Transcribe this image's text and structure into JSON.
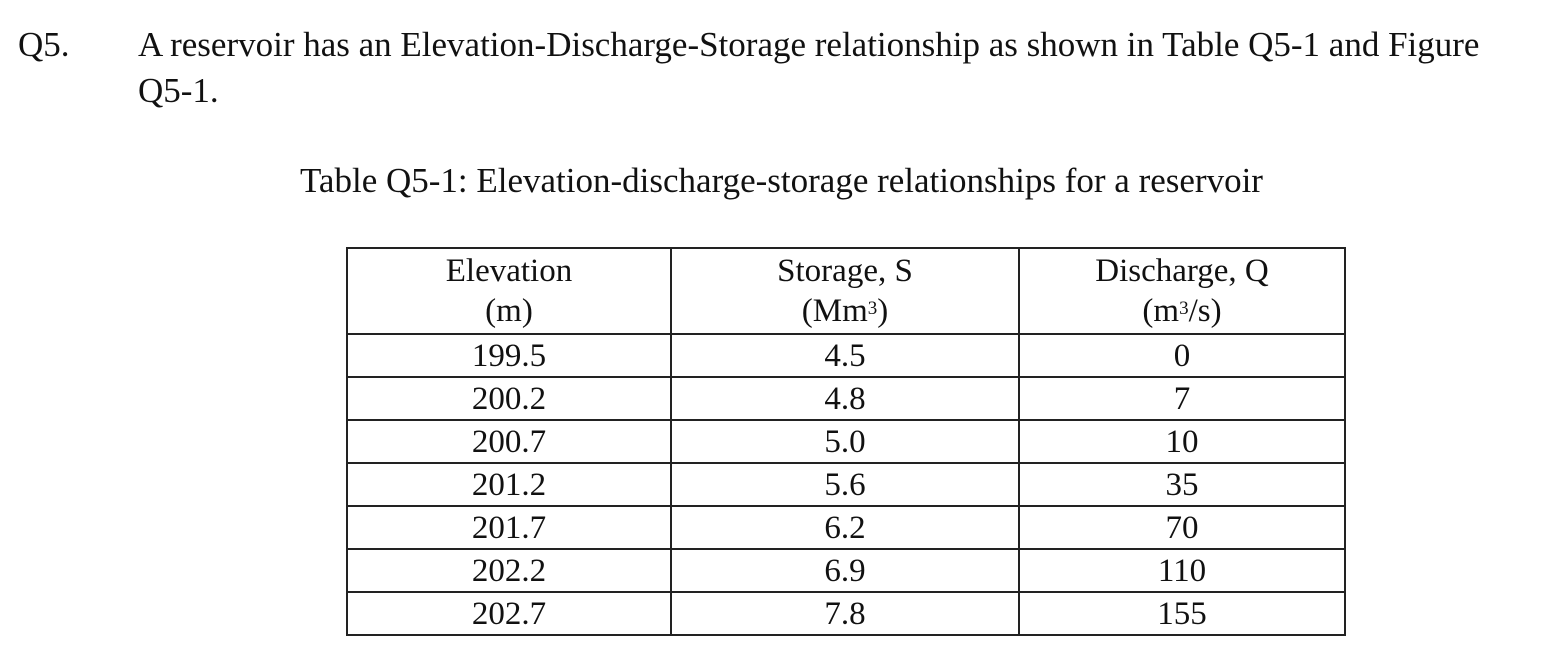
{
  "question": {
    "number": "Q5.",
    "text": "A reservoir has an Elevation-Discharge-Storage relationship as shown in Table Q5-1 and Figure Q5-1."
  },
  "table": {
    "caption": "Table Q5-1: Elevation-discharge-storage relationships for a reservoir",
    "headers": [
      {
        "name": "Elevation",
        "unit_base": "(m",
        "unit_sup": "",
        "unit_tail": ")"
      },
      {
        "name": "Storage, S",
        "unit_base": "(Mm",
        "unit_sup": "3",
        "unit_tail": ")"
      },
      {
        "name": "Discharge, Q",
        "unit_base": "(m",
        "unit_sup": "3",
        "unit_tail": "/s)"
      }
    ],
    "rows": [
      [
        "199.5",
        "4.5",
        "0"
      ],
      [
        "200.2",
        "4.8",
        "7"
      ],
      [
        "200.7",
        "5.0",
        "10"
      ],
      [
        "201.2",
        "5.6",
        "35"
      ],
      [
        "201.7",
        "6.2",
        "70"
      ],
      [
        "202.2",
        "6.9",
        "110"
      ],
      [
        "202.7",
        "7.8",
        "155"
      ]
    ]
  }
}
